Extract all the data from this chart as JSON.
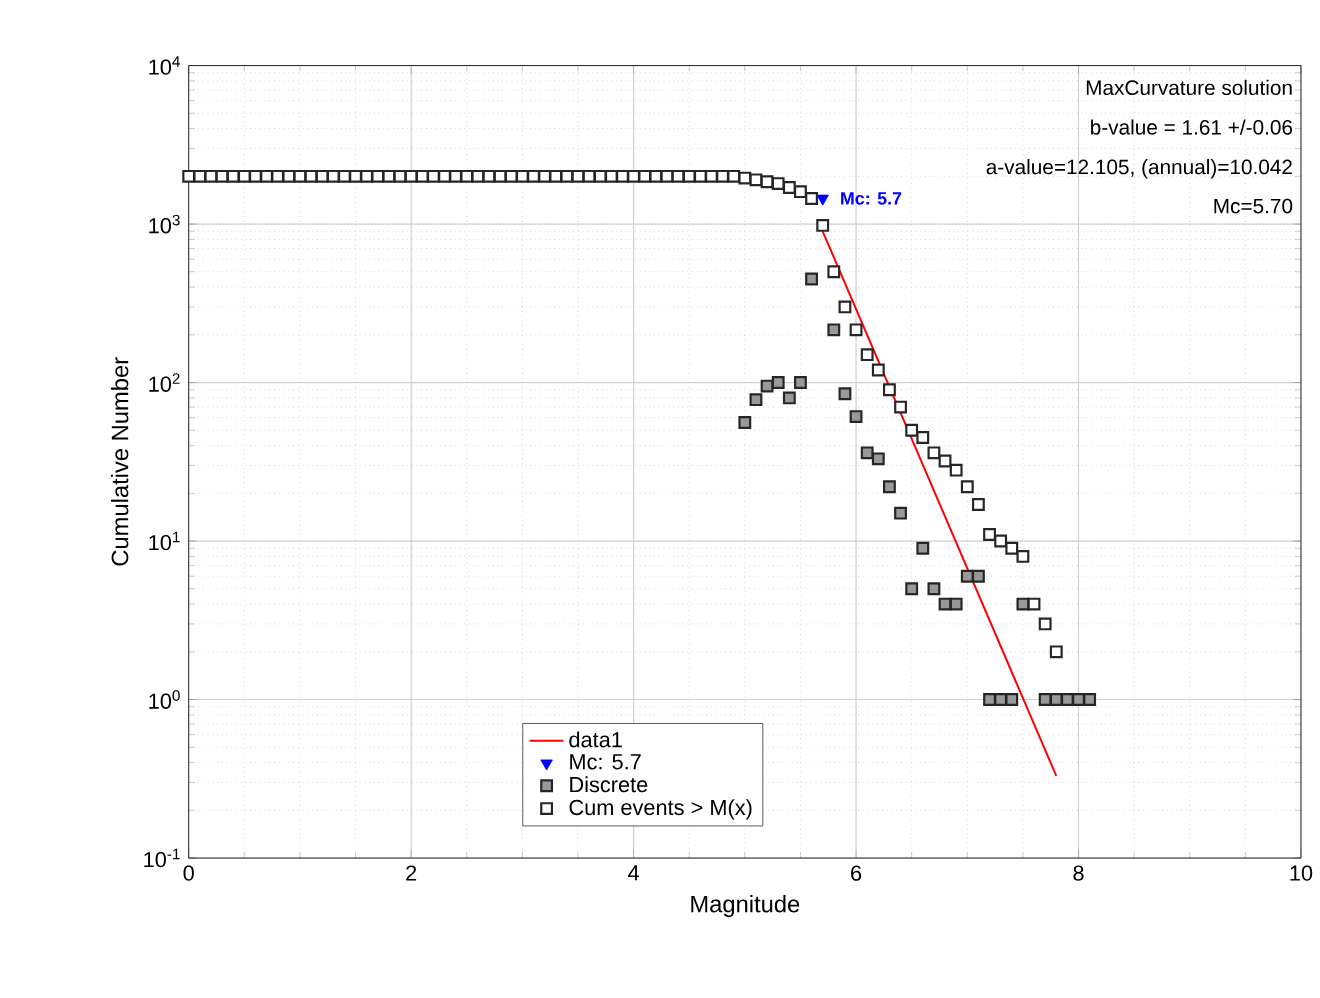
{
  "chart_data": {
    "type": "scatter",
    "xlabel": "Magnitude",
    "ylabel": "Cumulative Number",
    "xlim": [
      0,
      10
    ],
    "xticks": [
      0,
      2,
      4,
      6,
      8,
      10
    ],
    "ylim": [
      0.1,
      10000
    ],
    "yticks": [
      {
        "value": 0.1,
        "label": "10$^{-1}$"
      },
      {
        "value": 1,
        "label": "10$^{0}$"
      },
      {
        "value": 10,
        "label": "10$^{1}$"
      },
      {
        "value": 100,
        "label": "10$^{2}$"
      },
      {
        "value": 1000,
        "label": "10$^{3}$"
      },
      {
        "value": 10000,
        "label": "10$^{4}$"
      }
    ],
    "log": "y",
    "grid": true,
    "legend": "bottom",
    "annotations": [
      "MaxCurvature solution",
      "b-value = 1.61 +/-0.06",
      "a-value=12.105, (annual)=10.042",
      "Mc=5.70",
      {
        "text": "Mc: 5.7",
        "x": 5.7,
        "y": 1450
      }
    ],
    "series": [
      {
        "name": "data1",
        "type": "line",
        "color": "#ff0000",
        "marker": "none",
        "x": [
          5.7,
          7.8
        ],
        "values": [
          900,
          0.33
        ]
      },
      {
        "name": "Mc: 5.7",
        "color": "#0000ff",
        "marker": "triangle",
        "x": [
          5.7
        ],
        "values": [
          1450
        ]
      },
      {
        "name": "Discrete",
        "color": "#999999",
        "marker": "square",
        "x": [
          5.0,
          5.1,
          5.2,
          5.3,
          5.4,
          5.5,
          5.6,
          5.8,
          5.9,
          6.0,
          6.1,
          6.2,
          6.3,
          6.4,
          6.5,
          6.6,
          6.7,
          6.8,
          6.9,
          7.0,
          7.1,
          7.2,
          7.3,
          7.4,
          7.5,
          7.6,
          7.7,
          7.8,
          7.9,
          8.0,
          8.1
        ],
        "values": [
          56,
          78,
          95,
          100,
          80,
          100,
          450,
          215,
          85,
          61,
          36,
          33,
          22,
          15,
          5,
          9,
          5,
          4,
          4,
          6,
          6,
          1,
          1,
          1,
          4,
          null,
          1,
          1,
          1,
          1,
          1
        ]
      },
      {
        "name": "Cum events > M(x)",
        "color": "#ffffff",
        "marker": "square",
        "x": [
          0.0,
          0.1,
          0.2,
          0.3,
          0.4,
          0.5,
          0.6,
          0.7,
          0.8,
          0.9,
          1.0,
          1.1,
          1.2,
          1.3,
          1.4,
          1.5,
          1.6,
          1.7,
          1.8,
          1.9,
          2.0,
          2.1,
          2.2,
          2.3,
          2.4,
          2.5,
          2.6,
          2.7,
          2.8,
          2.9,
          3.0,
          3.1,
          3.2,
          3.3,
          3.4,
          3.5,
          3.6,
          3.7,
          3.8,
          3.9,
          4.0,
          4.1,
          4.2,
          4.3,
          4.4,
          4.5,
          4.6,
          4.7,
          4.8,
          4.9,
          5.0,
          5.1,
          5.2,
          5.3,
          5.4,
          5.5,
          5.6,
          5.7,
          5.8,
          5.9,
          6.0,
          6.1,
          6.2,
          6.3,
          6.4,
          6.5,
          6.6,
          6.7,
          6.8,
          6.9,
          7.0,
          7.1,
          7.2,
          7.3,
          7.4,
          7.5,
          7.6,
          7.7,
          7.8
        ],
        "values": [
          2000,
          2000,
          2000,
          2000,
          2000,
          2000,
          2000,
          2000,
          2000,
          2000,
          2000,
          2000,
          2000,
          2000,
          2000,
          2000,
          2000,
          2000,
          2000,
          2000,
          2000,
          2000,
          2000,
          2000,
          2000,
          2000,
          2000,
          2000,
          2000,
          2000,
          2000,
          2000,
          2000,
          2000,
          2000,
          2000,
          2000,
          2000,
          2000,
          2000,
          2000,
          2000,
          2000,
          2000,
          2000,
          2000,
          2000,
          2000,
          2000,
          2000,
          1950,
          1900,
          1850,
          1800,
          1700,
          1600,
          1450,
          980,
          500,
          300,
          215,
          150,
          120,
          90,
          70,
          50,
          45,
          36,
          32,
          28,
          22,
          17,
          11,
          10,
          9,
          8,
          4,
          3,
          2
        ]
      }
    ]
  }
}
